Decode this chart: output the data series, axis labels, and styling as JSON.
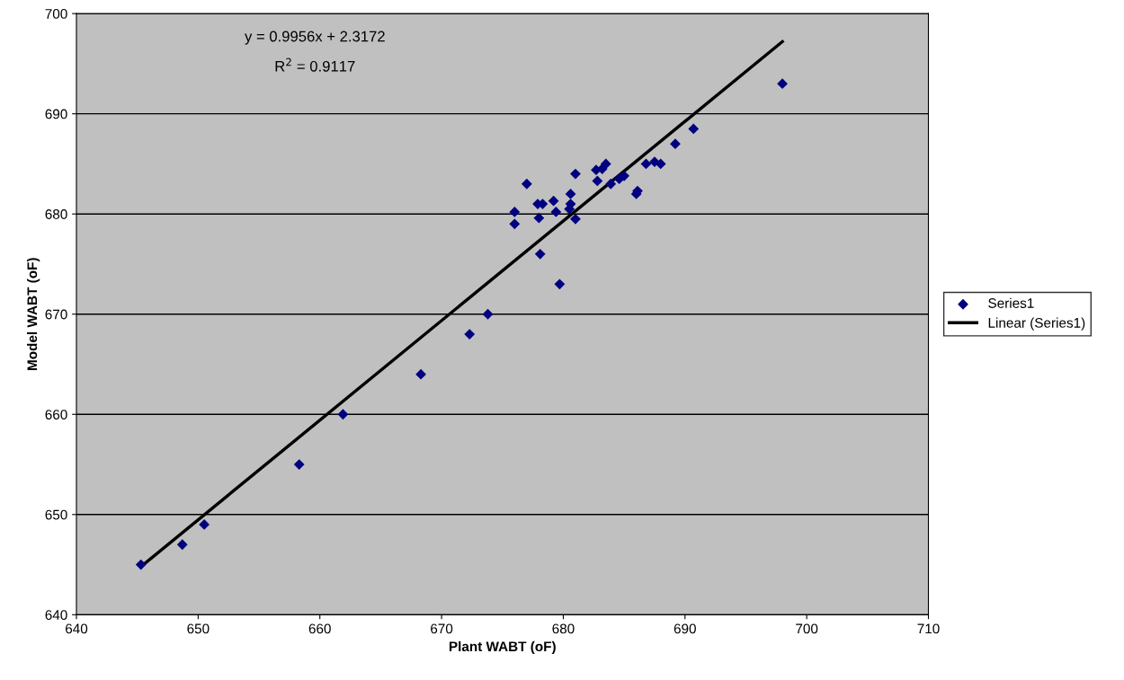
{
  "chart_data": {
    "type": "scatter",
    "xlabel": "Plant WABT (oF)",
    "ylabel": "Model WABT (oF)",
    "xlim": [
      640,
      710
    ],
    "xticks": [
      640,
      650,
      660,
      670,
      680,
      690,
      700,
      710
    ],
    "ylim": [
      640,
      700
    ],
    "yticks": [
      640,
      650,
      660,
      670,
      680,
      690,
      700
    ],
    "grid": "y",
    "legend": "right",
    "annotations": [
      "y = 0.9956x + 2.3172",
      "R$^{2}$ = 0.9117"
    ],
    "series": [
      {
        "name": "Series1",
        "marker": "diamond",
        "color": "#000080",
        "x": [
          645.3,
          648.7,
          650.5,
          658.3,
          661.9,
          668.3,
          672.3,
          673.8,
          679.7,
          678.1,
          676,
          676,
          677,
          677.9,
          678.3,
          678,
          679.2,
          679.4,
          680.5,
          680.6,
          680.6,
          681,
          681,
          682.7,
          682.8,
          683.2,
          683.5,
          683.9,
          684.6,
          685,
          686,
          686.1,
          686.8,
          687.5,
          688,
          689.2,
          690.7,
          698
        ],
        "values": [
          645,
          647,
          649,
          655,
          660,
          664,
          668,
          670,
          673,
          676,
          679,
          680.2,
          683,
          681,
          681,
          679.6,
          681.3,
          680.2,
          680.5,
          681,
          682,
          679.5,
          684,
          684.4,
          683.3,
          684.5,
          685,
          683,
          683.5,
          683.8,
          682,
          682.3,
          685,
          685.2,
          685,
          687,
          688.5,
          693
        ]
      },
      {
        "name": "Linear (Series1)",
        "type": "line",
        "marker": "none",
        "color": "#000000",
        "x": [
          645.3,
          698
        ],
        "values": [
          644.8,
          697.2
        ]
      }
    ]
  }
}
